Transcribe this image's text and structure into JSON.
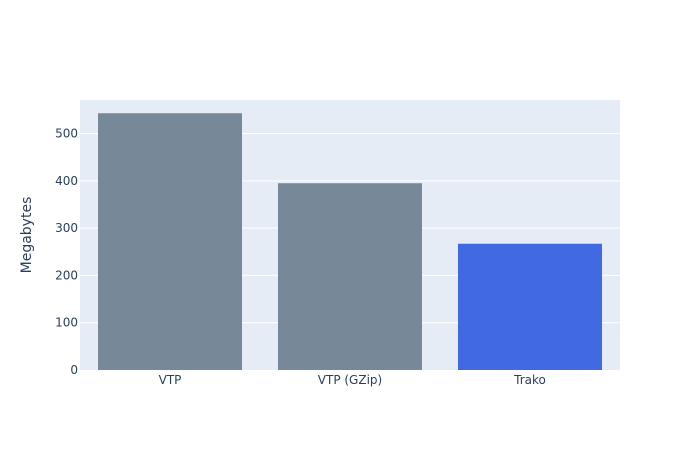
{
  "chart_data": {
    "type": "bar",
    "categories": [
      "VTP",
      "VTP (GZip)",
      "Trako"
    ],
    "values": [
      543,
      395,
      267
    ],
    "bar_colors": [
      "#778899",
      "#778899",
      "#4169e1"
    ],
    "title": "",
    "xlabel": "",
    "ylabel": "Megabytes",
    "ylim": [
      0,
      571
    ],
    "yticks": [
      0,
      100,
      200,
      300,
      400,
      500
    ],
    "grid": true,
    "legend": "none",
    "plot_bg": "#e5ecf6",
    "gridline_color": "#ffffff",
    "text_color": "#2a3f5f"
  }
}
